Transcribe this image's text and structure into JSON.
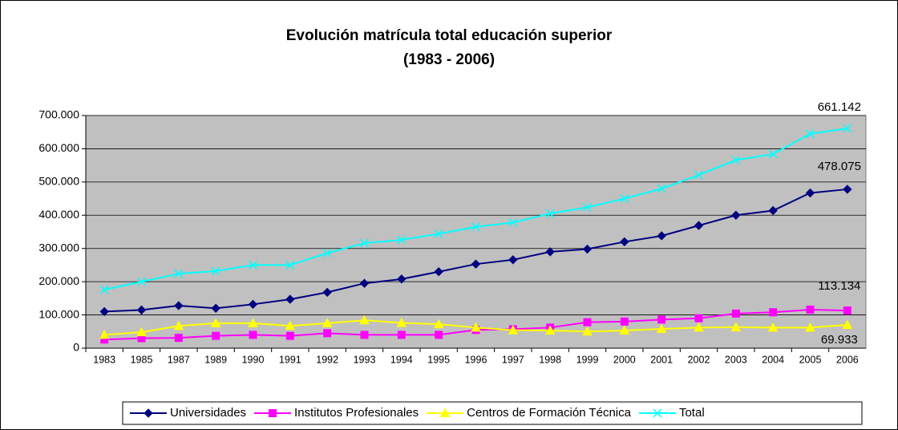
{
  "chart_data": {
    "type": "line",
    "title": "Evolución matrícula total educación superior",
    "subtitle": "(1983 - 2006)",
    "categories": [
      "1983",
      "1985",
      "1987",
      "1989",
      "1990",
      "1991",
      "1992",
      "1993",
      "1994",
      "1995",
      "1996",
      "1997",
      "1998",
      "1999",
      "2000",
      "2001",
      "2002",
      "2003",
      "2004",
      "2005",
      "2006"
    ],
    "series": [
      {
        "name": "Universidades",
        "color": "#000080",
        "marker": "diamond",
        "values": [
          110000,
          115000,
          128000,
          120000,
          132000,
          147000,
          168000,
          195000,
          208000,
          230000,
          253000,
          266000,
          290000,
          298000,
          320000,
          338000,
          369000,
          400000,
          414000,
          467000,
          478075
        ],
        "value_labels": [
          null,
          null,
          null,
          null,
          null,
          null,
          null,
          null,
          null,
          null,
          null,
          null,
          null,
          null,
          null,
          null,
          null,
          null,
          null,
          null,
          "478.075"
        ]
      },
      {
        "name": "Institutos Profesionales",
        "color": "#ff00ff",
        "marker": "square",
        "values": [
          26000,
          30000,
          31000,
          37000,
          40000,
          37000,
          45000,
          40000,
          40000,
          40000,
          55000,
          57000,
          62000,
          78000,
          80000,
          86000,
          90000,
          104000,
          108000,
          116000,
          113134
        ],
        "value_labels": [
          null,
          null,
          null,
          null,
          null,
          null,
          null,
          null,
          null,
          null,
          null,
          null,
          null,
          null,
          null,
          null,
          null,
          null,
          null,
          null,
          "113.134"
        ]
      },
      {
        "name": "Centros de Formación Técnica",
        "color": "#ffff00",
        "marker": "triangle",
        "values": [
          40000,
          48000,
          67000,
          75000,
          75000,
          67000,
          75000,
          84000,
          76000,
          72000,
          62000,
          54000,
          53000,
          50000,
          53000,
          58000,
          62000,
          63000,
          62000,
          62000,
          69933
        ],
        "value_labels": [
          null,
          null,
          null,
          null,
          null,
          null,
          null,
          null,
          null,
          null,
          null,
          null,
          null,
          null,
          null,
          null,
          null,
          null,
          null,
          null,
          "69.933"
        ]
      },
      {
        "name": "Total",
        "color": "#00ffff",
        "marker": "x",
        "values": [
          176000,
          200000,
          224000,
          232000,
          250000,
          250000,
          286000,
          316000,
          326000,
          344000,
          365000,
          378000,
          405000,
          424000,
          450000,
          480000,
          521000,
          566000,
          584000,
          645000,
          661142
        ],
        "value_labels": [
          null,
          null,
          null,
          null,
          null,
          null,
          null,
          null,
          null,
          null,
          null,
          null,
          null,
          null,
          null,
          null,
          null,
          null,
          null,
          null,
          "661.142"
        ]
      }
    ],
    "ylim": [
      0,
      700000
    ],
    "yticks": [
      0,
      {
        "value": 100000,
        "label": "100.000"
      },
      {
        "value": 200000,
        "label": "200.000"
      },
      {
        "value": 300000,
        "label": "300.000"
      },
      {
        "value": 400000,
        "label": "400.000"
      },
      {
        "value": 500000,
        "label": "500.000"
      },
      {
        "value": 600000,
        "label": "600.000"
      },
      {
        "value": 700000,
        "label": "700.000"
      }
    ],
    "grid": true,
    "plot_background": "#c0c0c0",
    "legend": "bottom"
  }
}
